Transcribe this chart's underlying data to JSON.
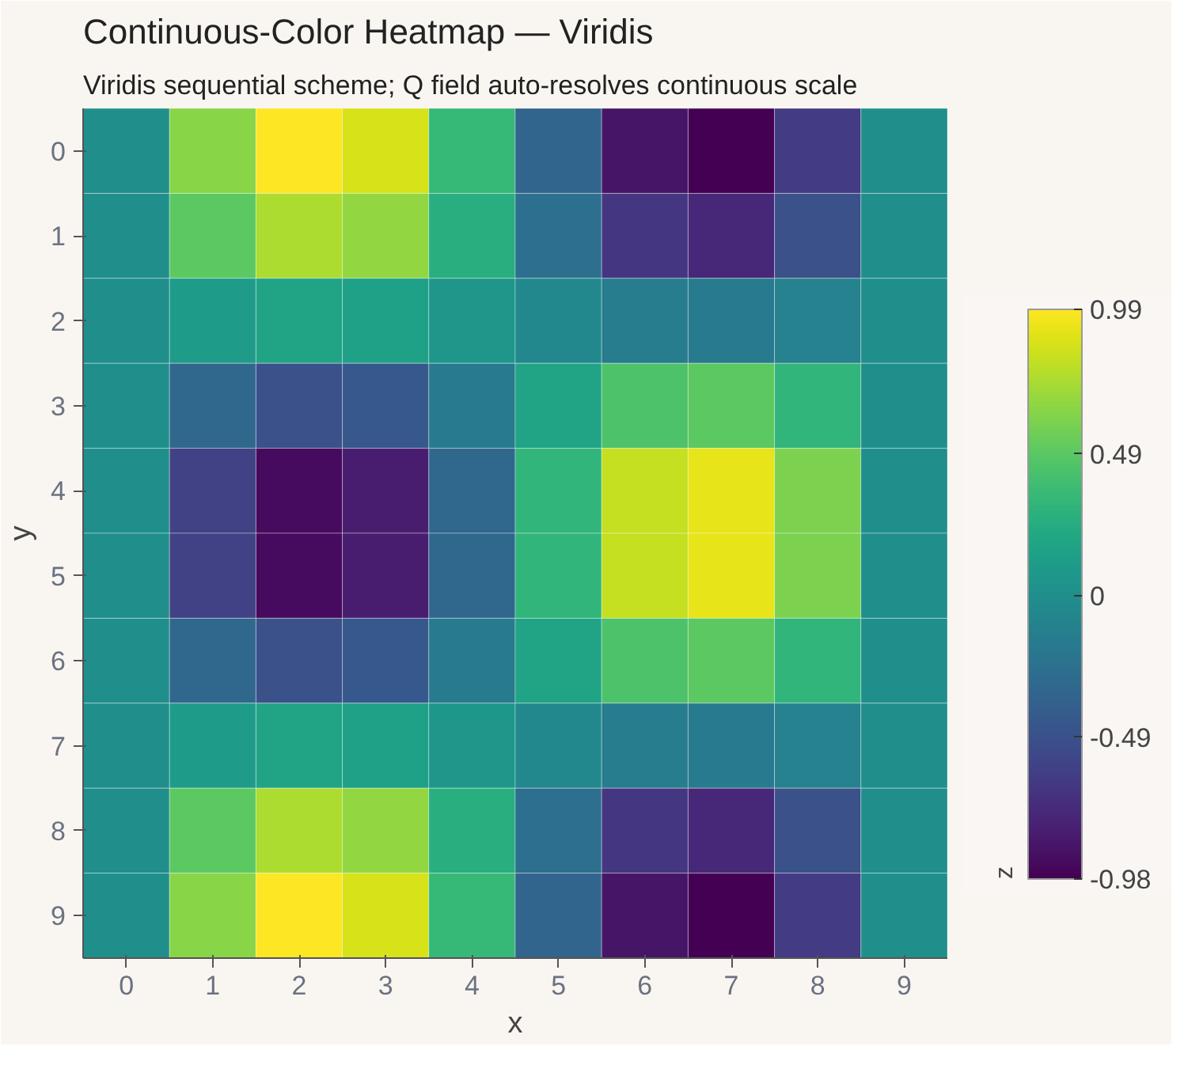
{
  "chart_data": {
    "type": "heatmap",
    "title": "Continuous-Color Heatmap — Viridis",
    "subtitle": "Viridis sequential scheme; Q field auto-resolves continuous scale",
    "xlabel": "x",
    "ylabel": "y",
    "clabel": "z",
    "categories": [
      "0",
      "1",
      "2",
      "3",
      "4",
      "5",
      "6",
      "7",
      "8",
      "9"
    ],
    "y_categories": [
      "0",
      "1",
      "2",
      "3",
      "4",
      "5",
      "6",
      "7",
      "8",
      "9"
    ],
    "cells": [
      [
        0,
        0.64,
        0.99,
        0.87,
        0.34,
        -0.34,
        -0.87,
        -0.98,
        -0.64,
        0
      ],
      [
        0,
        0.49,
        0.75,
        0.67,
        0.26,
        -0.26,
        -0.67,
        -0.75,
        -0.49,
        0
      ],
      [
        0,
        0.11,
        0.17,
        0.15,
        0.06,
        -0.06,
        -0.15,
        -0.17,
        -0.11,
        0
      ],
      [
        0,
        -0.32,
        -0.49,
        -0.44,
        -0.17,
        0.17,
        0.44,
        0.49,
        0.32,
        0
      ],
      [
        0,
        -0.6,
        -0.92,
        -0.82,
        -0.32,
        0.32,
        0.82,
        0.92,
        0.6,
        0
      ],
      [
        0,
        -0.6,
        -0.92,
        -0.82,
        -0.32,
        0.32,
        0.82,
        0.92,
        0.6,
        0
      ],
      [
        0,
        -0.32,
        -0.49,
        -0.44,
        -0.17,
        0.17,
        0.44,
        0.49,
        0.32,
        0
      ],
      [
        0,
        0.11,
        0.17,
        0.15,
        0.06,
        -0.06,
        -0.15,
        -0.17,
        -0.11,
        0
      ],
      [
        0,
        0.49,
        0.75,
        0.67,
        0.26,
        -0.26,
        -0.67,
        -0.75,
        -0.49,
        0
      ],
      [
        0,
        0.64,
        0.99,
        0.87,
        0.34,
        -0.34,
        -0.87,
        -0.98,
        -0.64,
        0
      ]
    ],
    "clim": [
      -0.98,
      0.99
    ],
    "cticks": [
      -0.98,
      -0.49,
      0,
      0.49,
      0.99
    ]
  }
}
